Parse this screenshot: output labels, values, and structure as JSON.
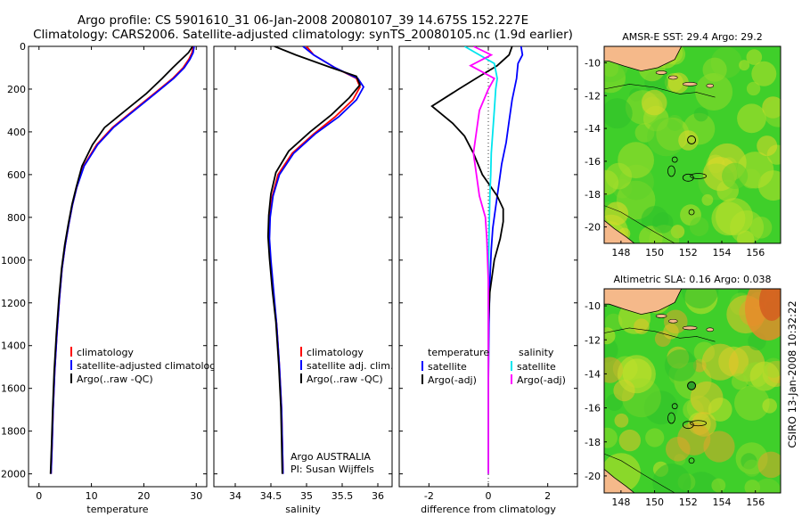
{
  "header": {
    "line1": "Argo profile: CS 5901610_31 06-Jan-2008 20080107_39 14.675S 152.227E",
    "line2": "Climatology: CARS2006. Satellite-adjusted climatology: synTS_20080105.nc (1.9d earlier)"
  },
  "side_label": "CSIRO 13-Jan-2008 10:32:22",
  "colors": {
    "red": "#ff0000",
    "blue": "#0000ff",
    "black": "#000000",
    "cyan": "#00e5ee",
    "magenta": "#ff00ff",
    "land": "#f5b98a"
  },
  "chart_data": [
    {
      "id": "temp",
      "type": "line",
      "xlabel": "temperature",
      "ylabel": "",
      "xlim": [
        -2,
        32
      ],
      "ylim": [
        0,
        2060
      ],
      "y_inverted": true,
      "xticks": [
        0,
        10,
        20,
        30
      ],
      "yticks": [
        0,
        200,
        400,
        600,
        800,
        1000,
        1200,
        1400,
        1600,
        1800,
        2000
      ],
      "legend": {
        "placement": "bottom-right",
        "entries": [
          "climatology",
          "satellite-adjusted climatology",
          "Argo(..raw -QC)"
        ]
      },
      "series": [
        {
          "name": "climatology",
          "color": "red",
          "x": [
            29.4,
            29.2,
            28.6,
            27.5,
            25.5,
            22,
            18,
            14,
            11,
            8.5,
            7.2,
            6.4,
            5.7,
            5.0,
            4.4,
            3.9,
            3.4,
            3.0,
            2.7,
            2.5,
            2.3
          ],
          "y": [
            0,
            30,
            60,
            100,
            150,
            220,
            300,
            380,
            460,
            560,
            660,
            740,
            830,
            930,
            1040,
            1180,
            1350,
            1520,
            1700,
            1860,
            2000
          ]
        },
        {
          "name": "satellite-adjusted climatology",
          "color": "blue",
          "x": [
            29.6,
            29.4,
            28.8,
            27.7,
            25.7,
            22.2,
            18.2,
            14.2,
            11.2,
            8.6,
            7.2,
            6.4,
            5.7,
            5.0,
            4.4,
            3.9,
            3.4,
            3.0,
            2.7,
            2.5,
            2.3
          ],
          "y": [
            0,
            30,
            60,
            100,
            150,
            220,
            300,
            380,
            460,
            560,
            660,
            740,
            830,
            930,
            1040,
            1180,
            1350,
            1520,
            1700,
            1860,
            2000
          ]
        },
        {
          "name": "Argo(..raw -QC)",
          "color": "black",
          "x": [
            29.3,
            28.5,
            27.2,
            25.5,
            23.5,
            20.5,
            16.5,
            12.5,
            10.2,
            8.2,
            7.1,
            6.3,
            5.6,
            4.9,
            4.3,
            3.8,
            3.3,
            2.9,
            2.6,
            2.4,
            2.2
          ],
          "y": [
            0,
            30,
            60,
            100,
            150,
            220,
            300,
            380,
            460,
            560,
            660,
            740,
            830,
            930,
            1040,
            1180,
            1350,
            1520,
            1700,
            1860,
            2000
          ]
        }
      ]
    },
    {
      "id": "sal",
      "type": "line",
      "xlabel": "salinity",
      "ylabel": "",
      "xlim": [
        33.7,
        36.2
      ],
      "ylim": [
        0,
        2060
      ],
      "y_inverted": true,
      "xticks": [
        34,
        34.5,
        35,
        35.5,
        36
      ],
      "legend": {
        "placement": "bottom-right",
        "entries": [
          "climatology",
          "satellite adj. clim.",
          "Argo(..raw -QC)"
        ]
      },
      "annotation": [
        "Argo AUSTRALIA",
        "PI: Susan Wijffels"
      ],
      "series": [
        {
          "name": "climatology",
          "color": "red",
          "x": [
            35.0,
            35.1,
            35.4,
            35.7,
            35.75,
            35.65,
            35.4,
            35.1,
            34.8,
            34.6,
            34.52,
            34.48,
            34.47,
            34.49,
            34.53,
            34.58,
            34.62,
            34.65,
            34.66,
            34.67
          ],
          "y": [
            0,
            40,
            100,
            150,
            190,
            250,
            330,
            410,
            500,
            600,
            700,
            800,
            900,
            1000,
            1150,
            1300,
            1500,
            1700,
            1850,
            2000
          ]
        },
        {
          "name": "satellite adj. clim.",
          "color": "blue",
          "x": [
            34.95,
            35.1,
            35.4,
            35.72,
            35.8,
            35.7,
            35.45,
            35.12,
            34.82,
            34.62,
            34.53,
            34.49,
            34.48,
            34.5,
            34.54,
            34.58,
            34.62,
            34.65,
            34.66,
            34.67
          ],
          "y": [
            0,
            40,
            100,
            150,
            190,
            250,
            330,
            410,
            500,
            600,
            700,
            800,
            900,
            1000,
            1150,
            1300,
            1500,
            1700,
            1850,
            2000
          ]
        },
        {
          "name": "Argo(..raw -QC)",
          "color": "black",
          "x": [
            34.55,
            34.85,
            35.35,
            35.7,
            35.75,
            35.6,
            35.35,
            35.05,
            34.75,
            34.57,
            34.5,
            34.47,
            34.46,
            34.48,
            34.52,
            34.57,
            34.61,
            34.64,
            34.65,
            34.66
          ],
          "y": [
            0,
            40,
            100,
            140,
            180,
            240,
            320,
            400,
            490,
            590,
            690,
            790,
            890,
            990,
            1140,
            1290,
            1490,
            1690,
            1840,
            2000
          ]
        }
      ]
    },
    {
      "id": "diff",
      "type": "line",
      "xlabel": "difference from climatology",
      "ylabel": "",
      "xlim": [
        -3,
        3
      ],
      "ylim": [
        0,
        2060
      ],
      "y_inverted": true,
      "xticks": [
        -2,
        0,
        2
      ],
      "legend": {
        "placement": "bottom",
        "groups": [
          {
            "title": "temperature",
            "entries": [
              "satellite",
              "Argo(-adj)"
            ]
          },
          {
            "title": "salinity",
            "entries": [
              "satellite",
              "Argo(-adj)"
            ]
          }
        ]
      },
      "series": [
        {
          "name": "temperature satellite",
          "color": "blue",
          "x": [
            1.1,
            1.15,
            1.0,
            0.95,
            0.8,
            0.7,
            0.6,
            0.45,
            0.35,
            0.25,
            0.15,
            0.1,
            0.05,
            0.02,
            0.0,
            0.0
          ],
          "y": [
            0,
            40,
            80,
            150,
            250,
            350,
            450,
            550,
            650,
            750,
            850,
            950,
            1100,
            1300,
            1600,
            2000
          ]
        },
        {
          "name": "temperature Argo(-adj)",
          "color": "black",
          "x": [
            0.8,
            0.7,
            0.3,
            -0.3,
            -1.0,
            -1.9,
            -1.2,
            -0.8,
            -0.5,
            -0.2,
            0.3,
            0.5,
            0.5,
            0.4,
            0.2,
            0.05,
            0.0,
            0.0
          ],
          "y": [
            0,
            40,
            90,
            140,
            200,
            280,
            360,
            420,
            500,
            600,
            700,
            760,
            820,
            900,
            1000,
            1150,
            1300,
            2000
          ]
        },
        {
          "name": "salinity satellite",
          "color": "cyan",
          "x": [
            -0.8,
            -0.3,
            0.2,
            0.3,
            0.25,
            0.2,
            0.15,
            0.1,
            0.08,
            0.05,
            0.02,
            0.0,
            0.0
          ],
          "y": [
            0,
            40,
            80,
            150,
            200,
            300,
            400,
            500,
            600,
            700,
            900,
            1100,
            2000
          ]
        },
        {
          "name": "salinity Argo(-adj)",
          "color": "magenta",
          "x": [
            -0.5,
            0.1,
            -0.6,
            0.2,
            0.0,
            -0.3,
            -0.5,
            -0.3,
            -0.1,
            -0.05,
            0.0,
            0.0,
            0.0
          ],
          "y": [
            0,
            40,
            90,
            150,
            200,
            300,
            500,
            700,
            800,
            900,
            1100,
            1300,
            2000
          ]
        }
      ]
    },
    {
      "id": "sst_map",
      "type": "heatmap",
      "title": "AMSR-E SST: 29.4 Argo: 29.2",
      "xlim": [
        147,
        157.5
      ],
      "ylim": [
        -21,
        -9
      ],
      "xticks": [
        148,
        150,
        152,
        154,
        156
      ],
      "yticks": [
        -10,
        -12,
        -14,
        -16,
        -18,
        -20
      ],
      "marker": {
        "lon": 152.2,
        "lat": -14.7,
        "filled": false
      }
    },
    {
      "id": "sla_map",
      "type": "heatmap",
      "title": "Altimetric SLA: 0.16 Argo: 0.038",
      "xlim": [
        147,
        157.5
      ],
      "ylim": [
        -21,
        -9
      ],
      "xticks": [
        148,
        150,
        152,
        154,
        156
      ],
      "yticks": [
        -10,
        -12,
        -14,
        -16,
        -18,
        -20
      ],
      "marker": {
        "lon": 152.2,
        "lat": -14.7,
        "filled": true
      }
    }
  ]
}
